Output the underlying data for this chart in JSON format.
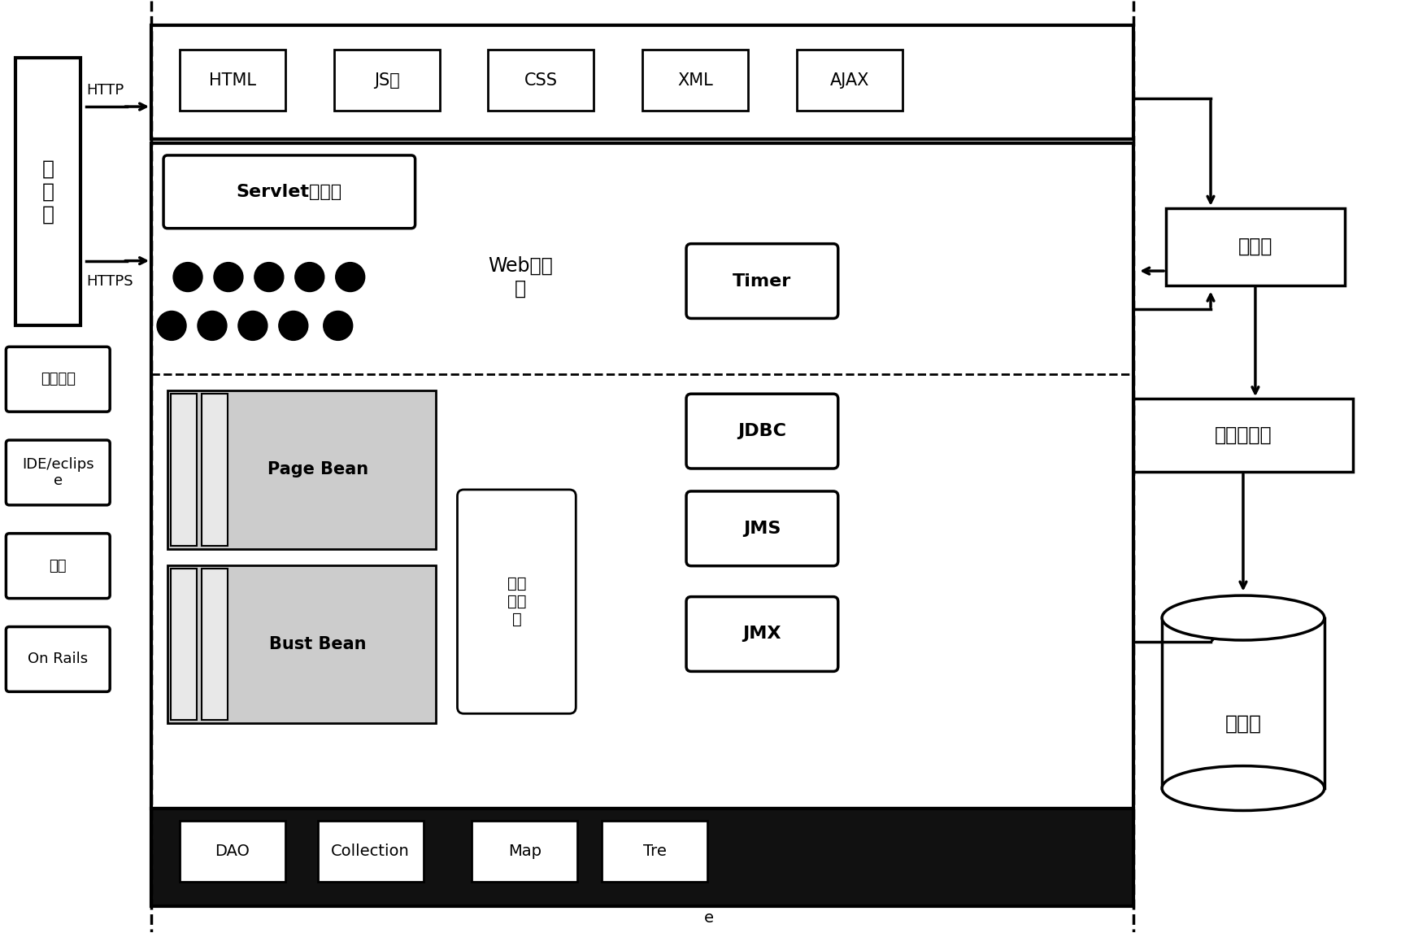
{
  "bg_color": "#ffffff",
  "title_bottom": "e",
  "browser_text": "浏\n览\n器",
  "http_label": "HTTP",
  "https_label": "HTTPS",
  "top_zone_items": [
    "HTML",
    "JS库",
    "CSS",
    "XML",
    "AJAX"
  ],
  "left_tools": [
    {
      "text": "外部工具"
    },
    {
      "text": "IDE/eclips\ne"
    },
    {
      "text": "监控"
    },
    {
      "text": "On Rails"
    }
  ],
  "servlet_label": "Servlet控制器",
  "web_component_label": "Web组件\n库",
  "page_bean_label": "Page Bean",
  "bust_bean_label": "Bust Bean",
  "expand_tool_label": "扩展\n工具\n库",
  "right_items": [
    "Timer",
    "JDBC",
    "JMS",
    "JMX"
  ],
  "bottom_items": [
    "DAO",
    "Collection",
    "Map",
    "Tre"
  ],
  "adapter_label": "适配器",
  "middleware_label": "业务中间件",
  "database_label": "数据库"
}
